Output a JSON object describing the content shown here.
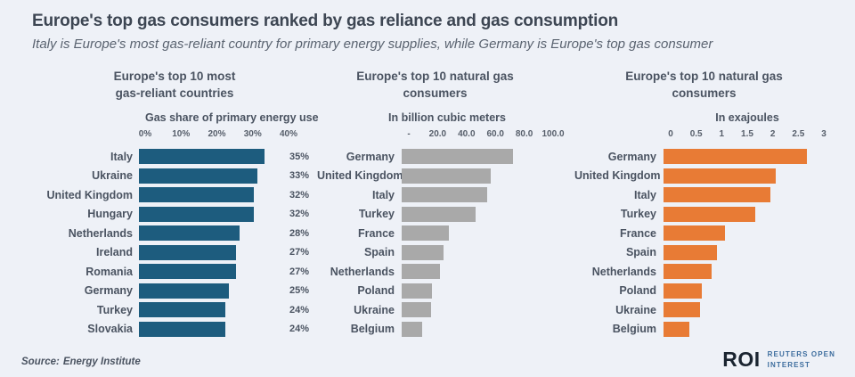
{
  "header": {
    "title": "Europe's top gas consumers ranked by gas reliance and gas consumption",
    "subtitle": "Italy is Europe's most gas-reliant country for primary energy supplies, while Germany is Europe's top gas consumer"
  },
  "colors": {
    "background": "#eef1f7",
    "reliance_bar": "#1d5c7e",
    "bcm_bar": "#a9a9a9",
    "ej_bar": "#e87b35",
    "text": "#4a5361",
    "logo_abbr": "#1a2430",
    "logo_text": "#3d6d9e"
  },
  "chart_data": [
    {
      "type": "bar",
      "orientation": "horizontal",
      "title": "Europe's top 10 most gas-reliant countries",
      "title_lines": [
        "Europe's top 10 most",
        "gas-reliant countries"
      ],
      "axis_label": "Gas share of primary energy use",
      "axis_max": 40,
      "tick_labels": [
        "0%",
        "10%",
        "20%",
        "30%",
        "40%"
      ],
      "categories": [
        "Italy",
        "Ukraine",
        "United Kingdom",
        "Hungary",
        "Netherlands",
        "Ireland",
        "Romania",
        "Germany",
        "Turkey",
        "Slovakia"
      ],
      "values": [
        35,
        33,
        32,
        32,
        28,
        27,
        27,
        25,
        24,
        24
      ],
      "value_labels": [
        "35%",
        "33%",
        "32%",
        "32%",
        "28%",
        "27%",
        "27%",
        "25%",
        "24%",
        "24%"
      ],
      "bar_color": "#1d5c7e",
      "grid": false,
      "legend": "none"
    },
    {
      "type": "bar",
      "orientation": "horizontal",
      "title": "Europe's top 10 natural gas consumers",
      "title_lines": [
        "Europe's top 10 natural gas",
        "consumers"
      ],
      "axis_label": "In billion cubic meters",
      "axis_max": 100,
      "tick_labels": [
        "-",
        "20.0",
        "40.0",
        "60.0",
        "80.0",
        "100.0"
      ],
      "categories": [
        "Germany",
        "United Kingdom",
        "Italy",
        "Turkey",
        "France",
        "Spain",
        "Netherlands",
        "Poland",
        "Ukraine",
        "Belgium"
      ],
      "values": [
        77,
        62,
        59,
        51,
        33,
        29,
        26.5,
        21,
        20.5,
        14
      ],
      "bar_color": "#a9a9a9",
      "grid": false,
      "legend": "none"
    },
    {
      "type": "bar",
      "orientation": "horizontal",
      "title": "Europe's top 10 natural gas consumers",
      "title_lines": [
        "Europe's top 10 natural gas",
        "consumers"
      ],
      "axis_label": "In exajoules",
      "axis_max": 3,
      "tick_labels": [
        "0",
        "0.5",
        "1",
        "1.5",
        "2",
        "2.5",
        "3"
      ],
      "categories": [
        "Germany",
        "United Kingdom",
        "Italy",
        "Turkey",
        "France",
        "Spain",
        "Netherlands",
        "Poland",
        "Ukraine",
        "Belgium"
      ],
      "values": [
        2.8,
        2.2,
        2.1,
        1.8,
        1.2,
        1.05,
        0.95,
        0.75,
        0.72,
        0.5
      ],
      "bar_color": "#e87b35",
      "grid": false,
      "legend": "none"
    }
  ],
  "footer": {
    "source_label": "Source:",
    "source_value": "Energy Institute",
    "logo": {
      "abbr": "ROI",
      "line1": "REUTERS OPEN",
      "line2": "INTEREST"
    }
  }
}
